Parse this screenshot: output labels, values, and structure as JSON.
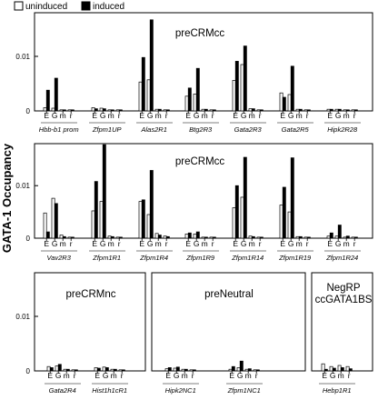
{
  "legend": {
    "uninduced": "uninduced",
    "induced": "induced"
  },
  "y_axis_title": "GATA-1 Occupancy",
  "chart_data": [
    {
      "type": "bar",
      "title": "preCRMcc",
      "ylim": [
        0,
        0.018
      ],
      "yticks": [
        "0",
        "0.01"
      ],
      "bar_labels": [
        "E",
        "G",
        "m",
        "r"
      ],
      "groups": [
        "Hbb-b1 prom",
        "Zfpm1UP",
        "Alas2R1",
        "Btg2R3",
        "Gata2R3",
        "Gata2R5",
        "Hipk2R28"
      ],
      "series": [
        {
          "name": "uninduced",
          "values": [
            [
              0.0006,
              0.0005,
              0.0002,
              0.0002
            ],
            [
              0.0006,
              0.0005,
              0.0002,
              0.0002
            ],
            [
              0.0053,
              0.0057,
              0.0003,
              0.0002
            ],
            [
              0.0027,
              0.0031,
              0.0003,
              0.0002
            ],
            [
              0.0056,
              0.0085,
              0.0004,
              0.0002
            ],
            [
              0.0033,
              0.003,
              0.0003,
              0.0002
            ],
            [
              0.0003,
              0.0003,
              0.0002,
              0.0002
            ]
          ]
        },
        {
          "name": "induced",
          "values": [
            [
              0.0038,
              0.006,
              0.0002,
              0.0002
            ],
            [
              0.0004,
              0.0004,
              0.0002,
              0.0002
            ],
            [
              0.0098,
              0.0167,
              0.0003,
              0.0002
            ],
            [
              0.0042,
              0.0078,
              0.0003,
              0.0002
            ],
            [
              0.0091,
              0.0119,
              0.0004,
              0.0002
            ],
            [
              0.0025,
              0.0082,
              0.0003,
              0.0002
            ],
            [
              0.0003,
              0.0003,
              0.0002,
              0.0002
            ]
          ]
        }
      ]
    },
    {
      "type": "bar",
      "title": "preCRMcc",
      "ylim": [
        0,
        0.018
      ],
      "yticks": [
        "0",
        "0.01"
      ],
      "bar_labels": [
        "E",
        "G",
        "m",
        "r"
      ],
      "groups": [
        "Vav2R3",
        "Zfpm1R1",
        "Zfpm1R4",
        "Zfpm1R9",
        "Zfpm1R14",
        "Zfpm1R19",
        "Zfpm1R24"
      ],
      "series": [
        {
          "name": "uninduced",
          "values": [
            [
              0.0048,
              0.0076,
              0.0006,
              0.0002
            ],
            [
              0.0052,
              0.007,
              0.0004,
              0.0002
            ],
            [
              0.007,
              0.0045,
              0.0009,
              0.0004
            ],
            [
              0.0008,
              0.0008,
              0.0002,
              0.0002
            ],
            [
              0.0058,
              0.0078,
              0.0004,
              0.0002
            ],
            [
              0.0063,
              0.005,
              0.0003,
              0.0002
            ],
            [
              0.0004,
              0.0004,
              0.0002,
              0.0002
            ]
          ]
        },
        {
          "name": "induced",
          "values": [
            [
              0.0012,
              0.0066,
              0.0003,
              0.0002
            ],
            [
              0.0108,
              0.0178,
              0.0003,
              0.0002
            ],
            [
              0.0073,
              0.0129,
              0.0006,
              0.0003
            ],
            [
              0.001,
              0.0012,
              0.0002,
              0.0002
            ],
            [
              0.01,
              0.0154,
              0.0003,
              0.0002
            ],
            [
              0.0097,
              0.0153,
              0.0003,
              0.0002
            ],
            [
              0.001,
              0.0025,
              0.0004,
              0.0002
            ]
          ]
        }
      ]
    },
    {
      "type": "bar",
      "title": "preCRMnc",
      "ylim": [
        0,
        0.018
      ],
      "yticks": [
        "0",
        "0.01"
      ],
      "bar_labels": [
        "E",
        "G",
        "m",
        "r"
      ],
      "groups": [
        "Gata2R4",
        "Hist1h1cR1"
      ],
      "series": [
        {
          "name": "uninduced",
          "values": [
            [
              0.0008,
              0.0009,
              0.0003,
              0.0002
            ],
            [
              0.0006,
              0.0007,
              0.0003,
              0.0002
            ]
          ]
        },
        {
          "name": "induced",
          "values": [
            [
              0.0006,
              0.0012,
              0.0003,
              0.0002
            ],
            [
              0.0005,
              0.0006,
              0.0003,
              0.0002
            ]
          ]
        }
      ]
    },
    {
      "type": "bar",
      "title": "preNeutral",
      "ylim": [
        0,
        0.018
      ],
      "yticks": [],
      "bar_labels": [
        "E",
        "G",
        "m",
        "r"
      ],
      "groups": [
        "Hipk2NC1",
        "Zfpm1NC1"
      ],
      "series": [
        {
          "name": "uninduced",
          "values": [
            [
              0.0004,
              0.0005,
              0.0003,
              0.0002
            ],
            [
              0.0003,
              0.0006,
              0.0003,
              0.0002
            ]
          ]
        },
        {
          "name": "induced",
          "values": [
            [
              0.0006,
              0.0007,
              0.0003,
              0.0002
            ],
            [
              0.0008,
              0.0018,
              0.0004,
              0.0002
            ]
          ]
        }
      ]
    },
    {
      "type": "bar",
      "title": "NegRP ccGATA1BS",
      "title_lines": [
        "NegRP",
        "ccGATA1BS"
      ],
      "ylim": [
        0,
        0.018
      ],
      "yticks": [],
      "bar_labels": [
        "E",
        "G",
        "m",
        "r"
      ],
      "groups": [
        "Hebp1R1"
      ],
      "series": [
        {
          "name": "uninduced",
          "values": [
            [
              0.0013,
              0.0008,
              0.001,
              0.0008
            ]
          ]
        },
        {
          "name": "induced",
          "values": [
            [
              0.0003,
              0.0005,
              0.0006,
              0.0004
            ]
          ]
        }
      ]
    }
  ]
}
